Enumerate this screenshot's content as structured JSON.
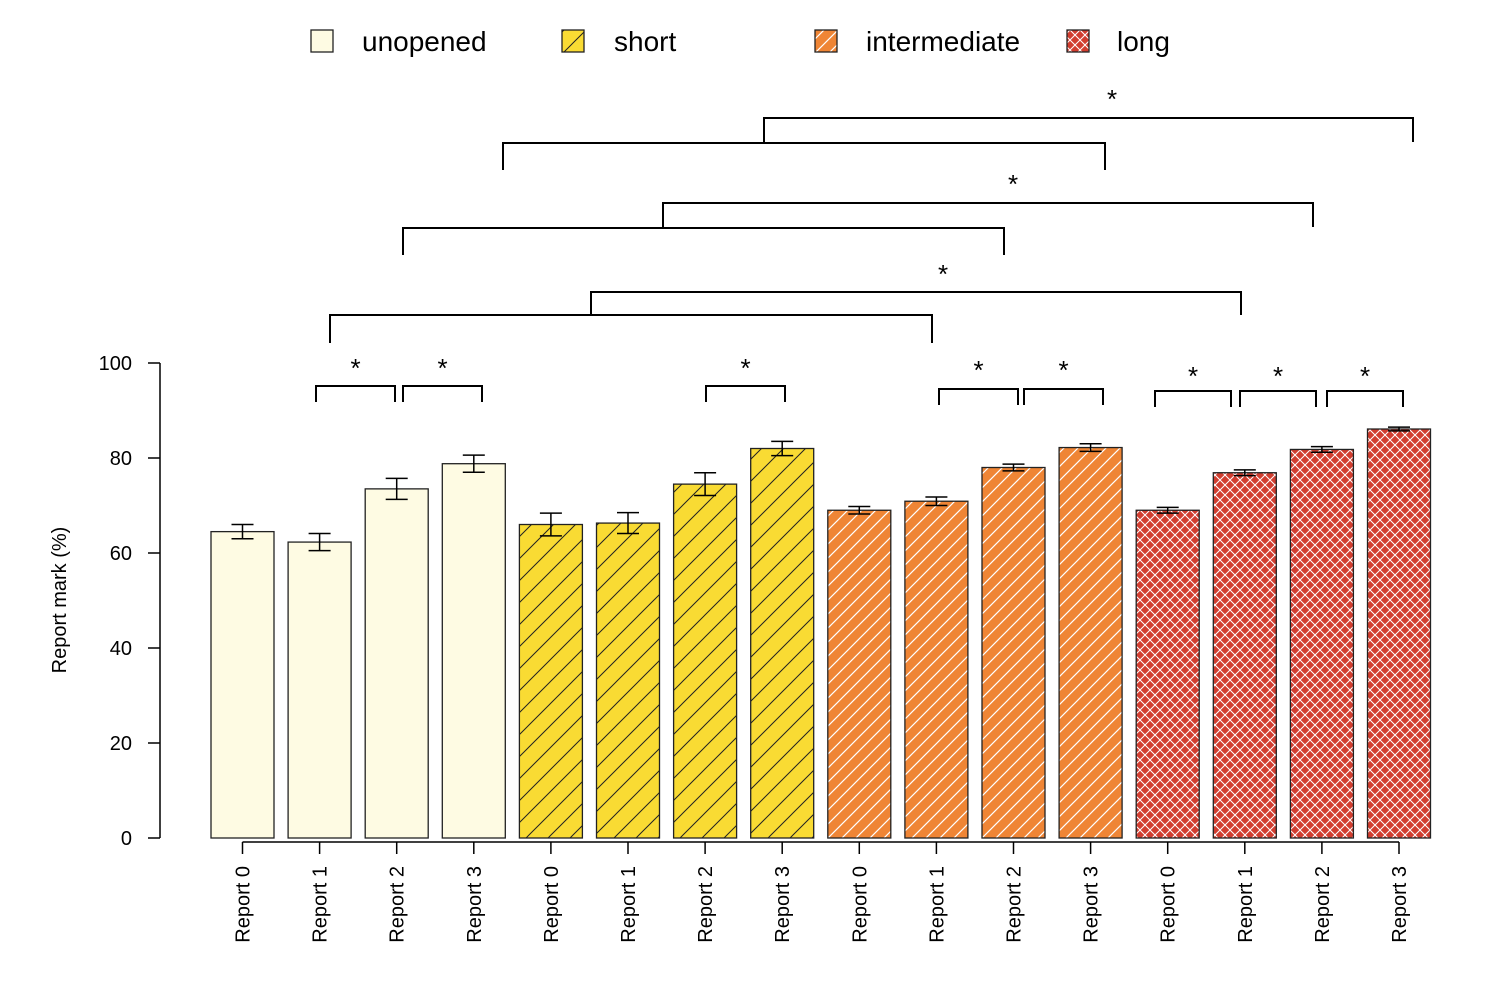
{
  "chart_data": {
    "type": "bar",
    "ylabel": "Report mark (%)",
    "ylim": [
      0,
      100
    ],
    "yticks": [
      0,
      20,
      40,
      60,
      80,
      100
    ],
    "grid": false,
    "legend_position": "top",
    "categories": [
      "Report 0",
      "Report 1",
      "Report 2",
      "Report 3"
    ],
    "series": [
      {
        "name": "unopened",
        "color": "#FEFBE3",
        "pattern": "none",
        "values": [
          64.5,
          62.3,
          73.5,
          78.8
        ],
        "errors": [
          1.5,
          1.8,
          2.2,
          1.8
        ]
      },
      {
        "name": "short",
        "color": "#F9DB33",
        "pattern": "diagonal",
        "values": [
          66.0,
          66.3,
          74.5,
          82.0
        ],
        "errors": [
          2.4,
          2.2,
          2.4,
          1.5
        ]
      },
      {
        "name": "intermediate",
        "color": "#EF8535",
        "pattern": "diagonal-white",
        "values": [
          69.0,
          70.9,
          78.0,
          82.2
        ],
        "errors": [
          0.8,
          0.9,
          0.7,
          0.8
        ]
      },
      {
        "name": "long",
        "color": "#D13D2F",
        "pattern": "crosshatch-white",
        "values": [
          69.0,
          76.9,
          81.8,
          86.1
        ],
        "errors": [
          0.6,
          0.6,
          0.6,
          0.4
        ]
      }
    ],
    "significance": [
      {
        "from": [
          0,
          1
        ],
        "to": [
          0,
          2
        ],
        "label": "*"
      },
      {
        "from": [
          0,
          2
        ],
        "to": [
          0,
          3
        ],
        "label": "*"
      },
      {
        "from": [
          1,
          2
        ],
        "to": [
          1,
          3
        ],
        "label": "*"
      },
      {
        "from": [
          2,
          1
        ],
        "to": [
          2,
          2
        ],
        "label": "*"
      },
      {
        "from": [
          2,
          2
        ],
        "to": [
          2,
          3
        ],
        "label": "*"
      },
      {
        "from": [
          3,
          0
        ],
        "to": [
          3,
          1
        ],
        "label": "*"
      },
      {
        "from": [
          3,
          1
        ],
        "to": [
          3,
          2
        ],
        "label": "*"
      },
      {
        "from": [
          3,
          2
        ],
        "to": [
          3,
          3
        ],
        "label": "*"
      },
      {
        "group_compare": true,
        "levels": [
          [
            0,
            1,
            2
          ],
          [
            1,
            2,
            3
          ]
        ],
        "label": "*"
      },
      {
        "group_compare": true,
        "levels": [
          [
            0,
            1,
            2
          ],
          [
            1,
            2,
            3
          ]
        ],
        "label": "*"
      },
      {
        "group_compare": true,
        "levels": [
          [
            0,
            1,
            2
          ],
          [
            1,
            2,
            3
          ]
        ],
        "label": "*"
      }
    ]
  }
}
